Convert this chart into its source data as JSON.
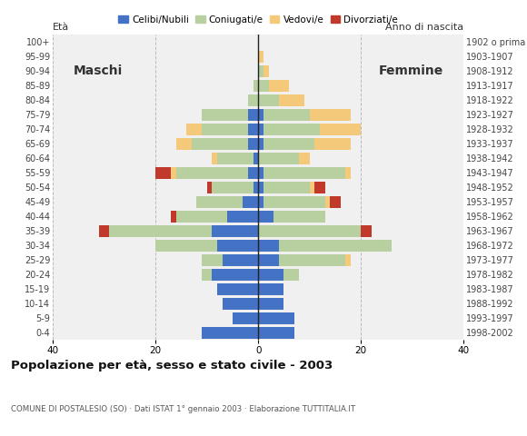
{
  "age_groups": [
    "0-4",
    "5-9",
    "10-14",
    "15-19",
    "20-24",
    "25-29",
    "30-34",
    "35-39",
    "40-44",
    "45-49",
    "50-54",
    "55-59",
    "60-64",
    "65-69",
    "70-74",
    "75-79",
    "80-84",
    "85-89",
    "90-94",
    "95-99",
    "100+"
  ],
  "birth_years": [
    "1998-2002",
    "1993-1997",
    "1988-1992",
    "1983-1987",
    "1978-1982",
    "1973-1977",
    "1968-1972",
    "1963-1967",
    "1958-1962",
    "1953-1957",
    "1948-1952",
    "1943-1947",
    "1938-1942",
    "1933-1937",
    "1928-1932",
    "1923-1927",
    "1918-1922",
    "1913-1917",
    "1908-1912",
    "1903-1907",
    "1902 o prima"
  ],
  "males": {
    "celibi": [
      11,
      5,
      7,
      8,
      9,
      7,
      8,
      9,
      6,
      3,
      1,
      2,
      1,
      2,
      2,
      2,
      0,
      0,
      0,
      0,
      0
    ],
    "coniugati": [
      0,
      0,
      0,
      0,
      2,
      4,
      12,
      20,
      10,
      9,
      8,
      14,
      7,
      11,
      9,
      9,
      2,
      1,
      0,
      0,
      0
    ],
    "vedovi": [
      0,
      0,
      0,
      0,
      0,
      0,
      0,
      0,
      0,
      0,
      0,
      1,
      1,
      3,
      3,
      0,
      0,
      0,
      0,
      0,
      0
    ],
    "divorziati": [
      0,
      0,
      0,
      0,
      0,
      0,
      0,
      2,
      1,
      0,
      1,
      3,
      0,
      0,
      0,
      0,
      0,
      0,
      0,
      0,
      0
    ]
  },
  "females": {
    "nubili": [
      7,
      7,
      5,
      5,
      5,
      4,
      4,
      0,
      3,
      1,
      1,
      1,
      0,
      1,
      1,
      1,
      0,
      0,
      0,
      0,
      0
    ],
    "coniugate": [
      0,
      0,
      0,
      0,
      3,
      13,
      22,
      20,
      10,
      12,
      9,
      16,
      8,
      10,
      11,
      9,
      4,
      2,
      1,
      0,
      0
    ],
    "vedove": [
      0,
      0,
      0,
      0,
      0,
      1,
      0,
      0,
      0,
      1,
      1,
      1,
      2,
      7,
      8,
      8,
      5,
      4,
      1,
      1,
      0
    ],
    "divorziate": [
      0,
      0,
      0,
      0,
      0,
      0,
      0,
      2,
      0,
      2,
      2,
      0,
      0,
      0,
      0,
      0,
      0,
      0,
      0,
      0,
      0
    ]
  },
  "colors": {
    "celibi": "#4472c4",
    "coniugati": "#b8cfa0",
    "vedovi": "#f5c97a",
    "divorziati": "#c0392b"
  },
  "xlim": 40,
  "title": "Popolazione per età, sesso e stato civile - 2003",
  "subtitle": "COMUNE DI POSTALESIO (SO) · Dati ISTAT 1° gennaio 2003 · Elaborazione TUTTITALIA.IT",
  "xlabel_left": "Maschi",
  "xlabel_right": "Femmine",
  "ylabel_left": "Età",
  "ylabel_right": "Anno di nascita",
  "bg_color": "#ffffff",
  "plot_bg": "#f0f0f0",
  "grid_color": "#bbbbbb"
}
